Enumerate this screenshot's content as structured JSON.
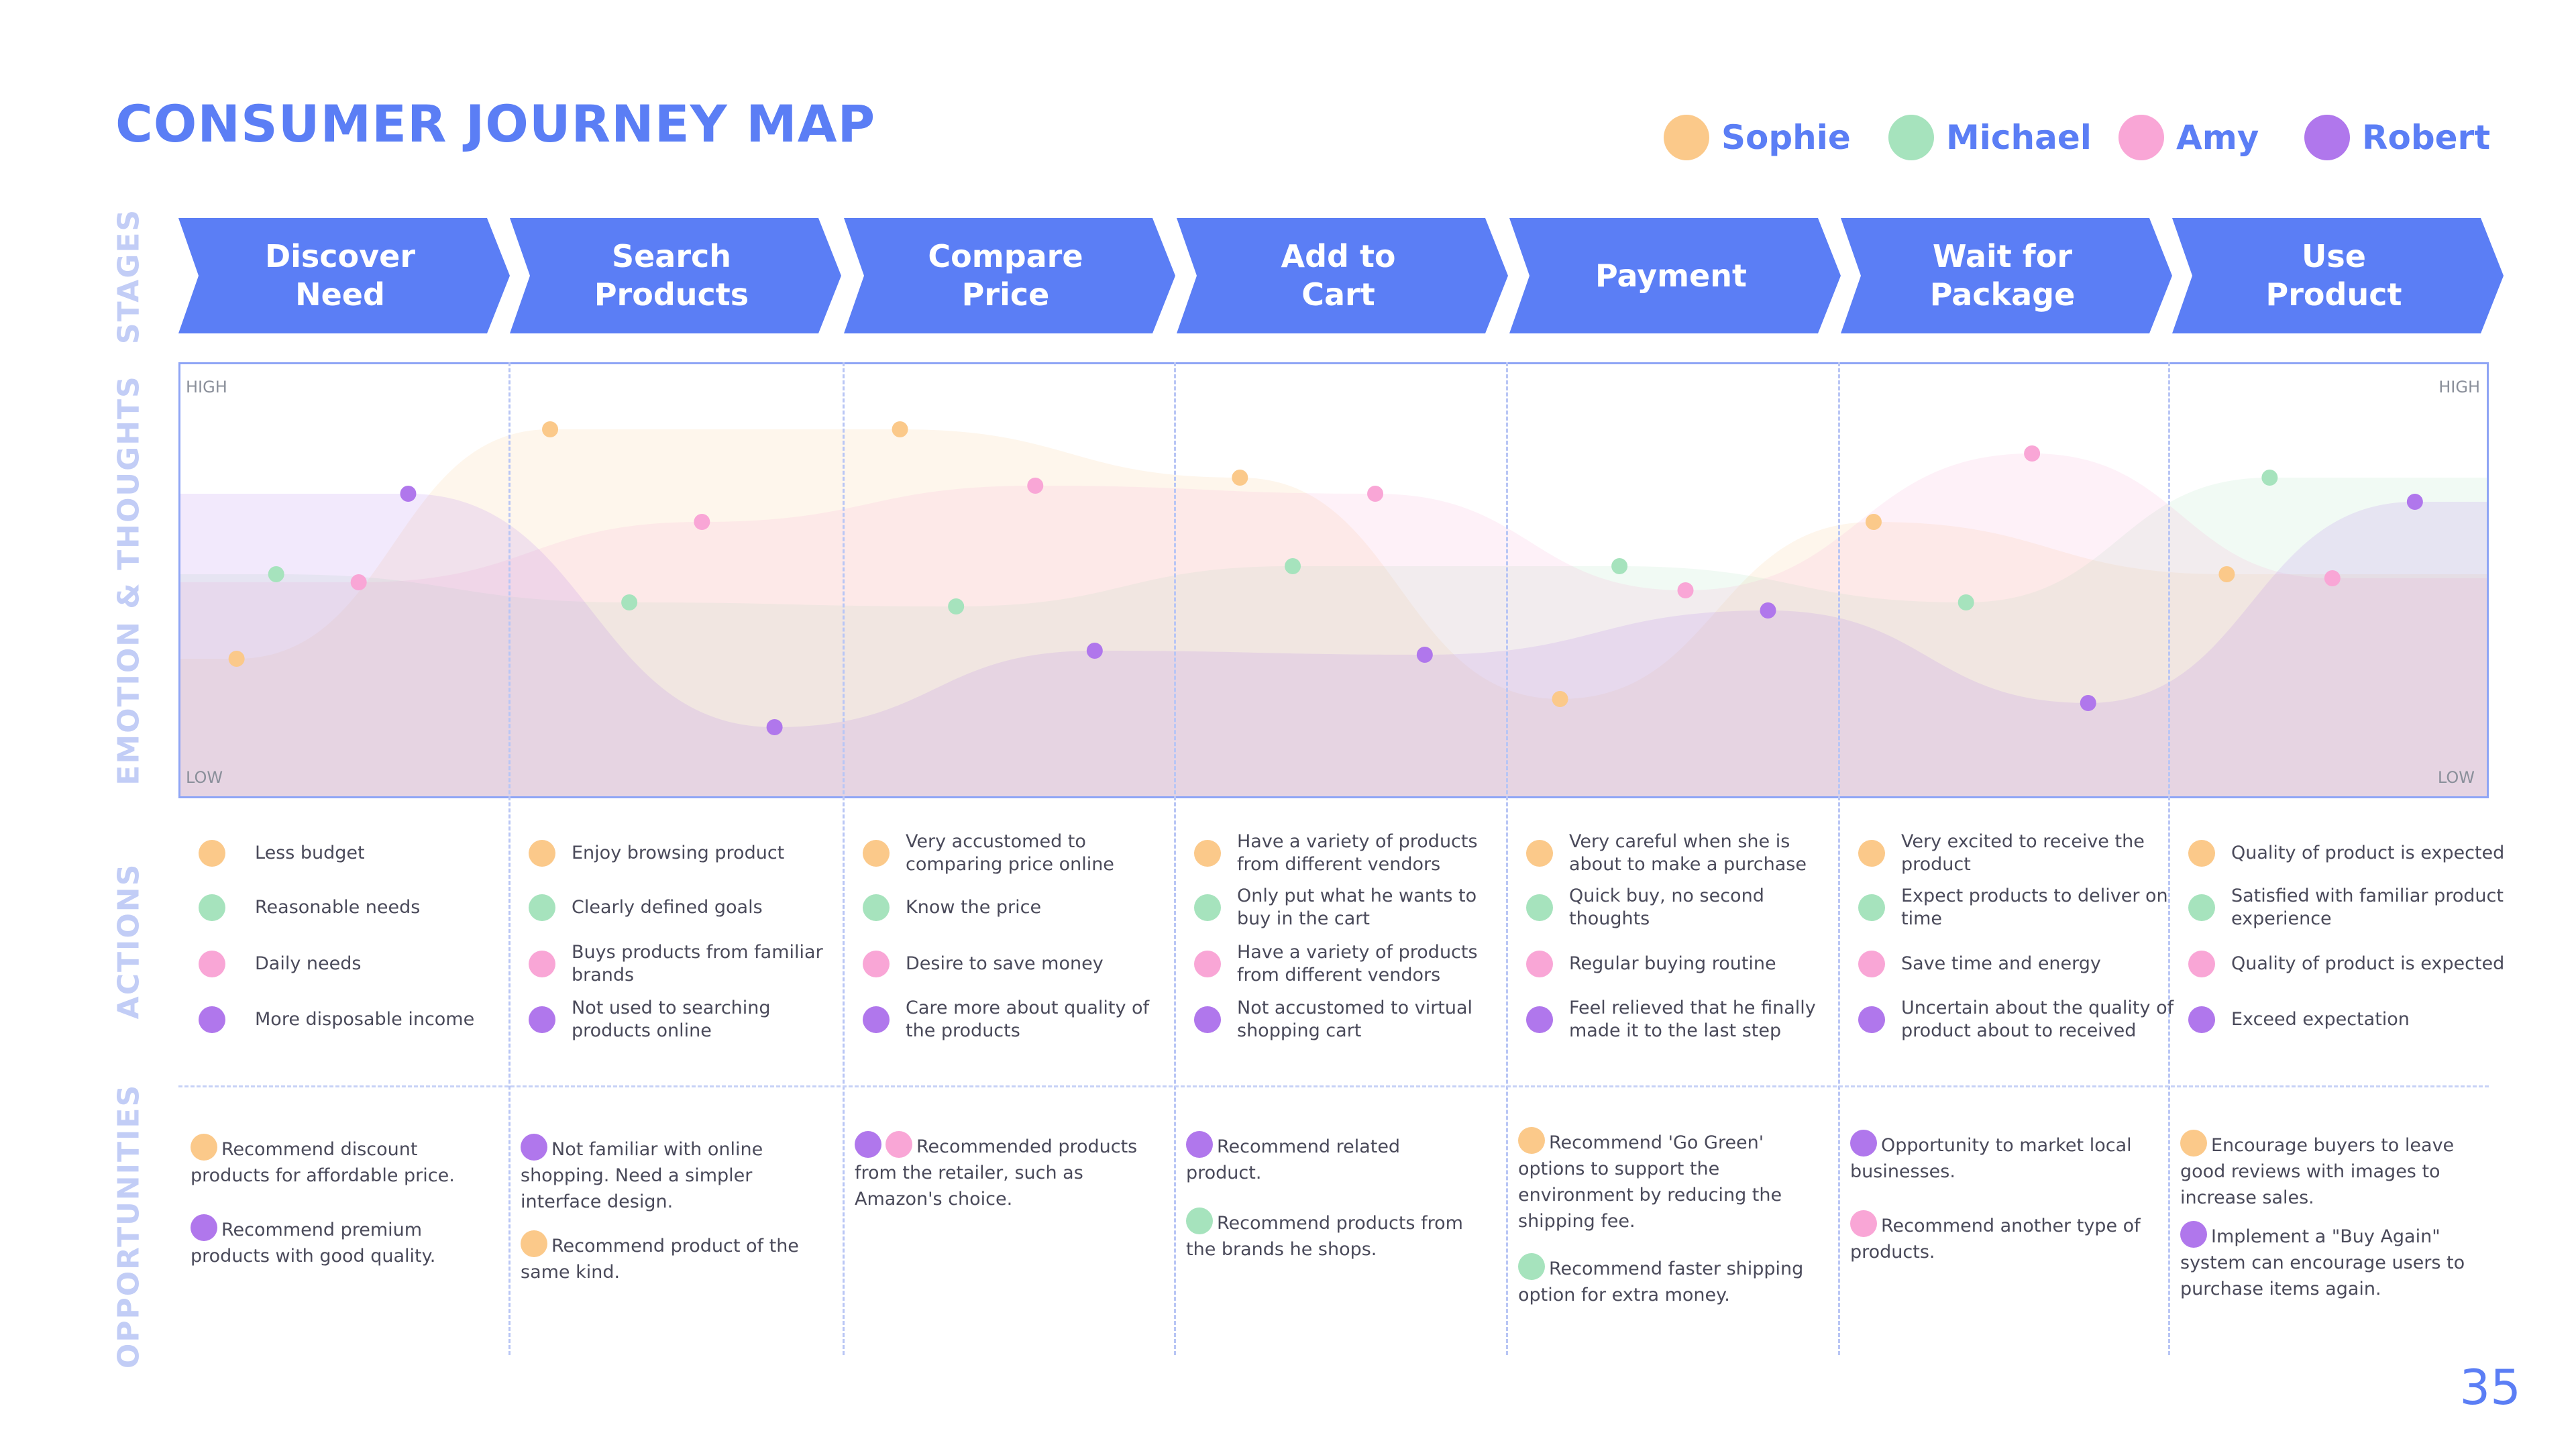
{
  "title": "CONSUMER JOURNEY MAP",
  "colors": {
    "accent": "#5b7ef5",
    "sophie": "#fbc98a",
    "michael": "#a6e3bd",
    "amy": "#f9a6d6",
    "robert": "#b077ec"
  },
  "legend": [
    {
      "name": "Sophie",
      "color": "#fbc98a"
    },
    {
      "name": "Michael",
      "color": "#a6e3bd"
    },
    {
      "name": "Amy",
      "color": "#f9a6d6"
    },
    {
      "name": "Robert",
      "color": "#b077ec"
    }
  ],
  "section_labels": {
    "stages": "STAGES",
    "emotion": "EMOTION & THOUGHTS",
    "actions": "ACTIONS",
    "opportunities": "OPPORTUNITIES"
  },
  "stages": [
    "Discover\nNeed",
    "Search\nProducts",
    "Compare\nPrice",
    "Add to\nCart",
    "Payment",
    "Wait for\nPackage",
    "Use\nProduct"
  ],
  "emotion": {
    "high": "HIGH",
    "low": "LOW"
  },
  "chart_data": {
    "type": "line",
    "categories": [
      "Discover Need",
      "Search Products",
      "Compare Price",
      "Add to Cart",
      "Payment",
      "Wait for Package",
      "Use Product"
    ],
    "ylim": [
      0,
      100
    ],
    "series": [
      {
        "name": "Sophie",
        "color": "#fbc98a",
        "values": [
          [
            0.17,
            31
          ],
          [
            1.12,
            88
          ],
          [
            2.18,
            88
          ],
          [
            3.21,
            76
          ],
          [
            4.18,
            21
          ],
          [
            5.13,
            65
          ],
          [
            6.2,
            52
          ]
        ]
      },
      {
        "name": "Michael",
        "color": "#a6e3bd",
        "values": [
          [
            0.29,
            52
          ],
          [
            1.36,
            45
          ],
          [
            2.35,
            44
          ],
          [
            3.37,
            54
          ],
          [
            4.36,
            54
          ],
          [
            5.41,
            45
          ],
          [
            6.33,
            76
          ]
        ]
      },
      {
        "name": "Amy",
        "color": "#f9a6d6",
        "values": [
          [
            0.54,
            50
          ],
          [
            1.58,
            65
          ],
          [
            2.59,
            74
          ],
          [
            3.62,
            72
          ],
          [
            4.56,
            48
          ],
          [
            5.61,
            82
          ],
          [
            6.52,
            51
          ]
        ]
      },
      {
        "name": "Robert",
        "color": "#b077ec",
        "values": [
          [
            0.69,
            72
          ],
          [
            1.8,
            14
          ],
          [
            2.77,
            33
          ],
          [
            3.77,
            32
          ],
          [
            4.81,
            43
          ],
          [
            5.78,
            20
          ],
          [
            6.77,
            70
          ]
        ]
      }
    ]
  },
  "actions": [
    [
      "Less budget",
      "Reasonable needs",
      "Daily needs",
      "More disposable income"
    ],
    [
      "Enjoy browsing product",
      "Clearly defined goals",
      "Buys products from familiar brands",
      "Not used to searching products online"
    ],
    [
      "Very accustomed to comparing price online",
      "Know the price",
      "Desire to save money",
      "Care more about quality of the products"
    ],
    [
      "Have a variety of products from different vendors",
      "Only put what he wants to buy in the cart",
      "Have a variety of products from different vendors",
      "Not accustomed to virtual shopping cart"
    ],
    [
      "Very careful when she is about to make a purchase",
      "Quick buy, no second thoughts",
      "Regular buying routine",
      "Feel relieved that he finally made it to the last step"
    ],
    [
      "Very excited to receive the product",
      "Expect products to deliver on time",
      "Save time and energy",
      "Uncertain about the quality of product about to received"
    ],
    [
      "Quality of product is expected",
      "Satisfied with familiar product experience",
      "Quality of product is expected",
      "Exceed expectation"
    ]
  ],
  "opportunities": [
    [
      {
        "dots": [
          "robert"
        ],
        "text": "Recommend premium products with good quality."
      },
      {
        "dots": [
          "sophie"
        ],
        "text": "Recommend discount products for affordable price."
      }
    ],
    [
      {
        "dots": [
          "robert"
        ],
        "text": "Not familiar with online shopping. Need a simpler interface design."
      },
      {
        "dots": [
          "sophie"
        ],
        "text": "Recommend product of the same kind."
      }
    ],
    [
      {
        "dots": [
          "robert",
          "amy"
        ],
        "text": "Recommended products from the retailer, such as Amazon's choice."
      }
    ],
    [
      {
        "dots": [
          "robert"
        ],
        "text": "Recommend related product."
      },
      {
        "dots": [
          "michael"
        ],
        "text": "Recommend products from the brands he shops."
      }
    ],
    [
      {
        "dots": [
          "sophie"
        ],
        "text": "Recommend 'Go Green' options to support the environment by reducing the shipping fee."
      },
      {
        "dots": [
          "michael"
        ],
        "text": "Recommend faster shipping option for extra money."
      }
    ],
    [
      {
        "dots": [
          "robert"
        ],
        "text": "Opportunity to market local businesses."
      },
      {
        "dots": [
          "amy"
        ],
        "text": "Recommend another type of products."
      }
    ],
    [
      {
        "dots": [
          "sophie"
        ],
        "text": "Encourage buyers to leave good reviews with images to increase sales."
      },
      {
        "dots": [
          "robert"
        ],
        "text": "Implement a \"Buy Again\" system can encourage users to purchase items again."
      }
    ]
  ],
  "page_number": "35"
}
